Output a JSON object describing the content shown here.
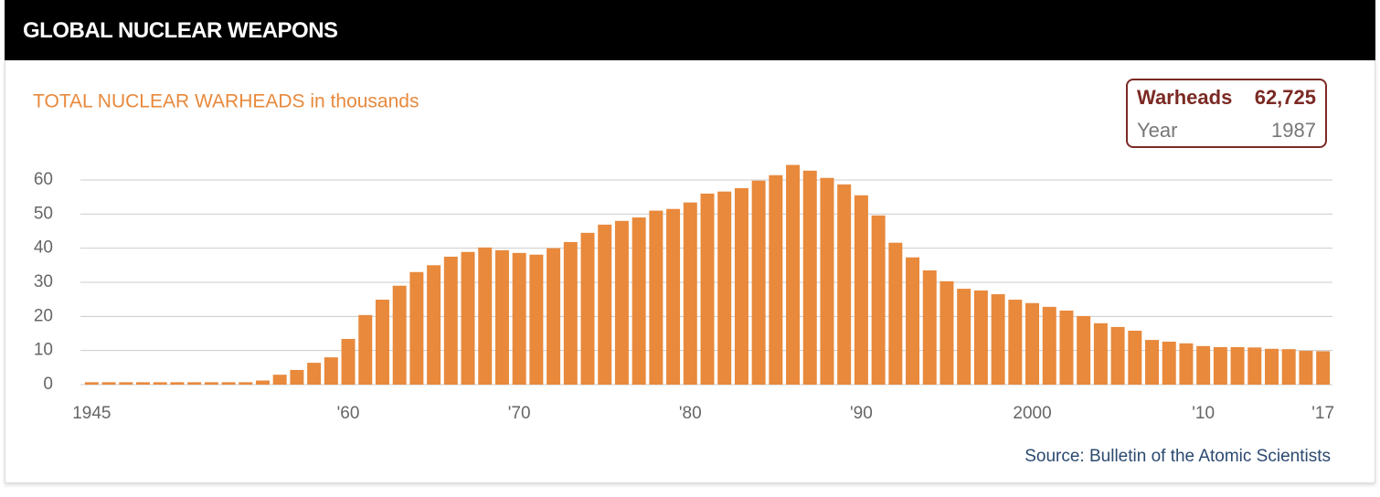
{
  "header": {
    "title": "GLOBAL NUCLEAR WEAPONS"
  },
  "chart_data": {
    "type": "bar",
    "subtitle": "TOTAL NUCLEAR WARHEADS in thousands",
    "source": "Source: Bulletin of the Atomic Scientists",
    "tooltip": {
      "label": "Warheads",
      "value": "62,725",
      "year_label": "Year",
      "year": "1987"
    },
    "color": "#e8893c",
    "grid": true,
    "x": [
      1945,
      1946,
      1947,
      1948,
      1949,
      1950,
      1951,
      1952,
      1953,
      1954,
      1955,
      1956,
      1957,
      1958,
      1959,
      1960,
      1961,
      1962,
      1963,
      1964,
      1965,
      1966,
      1967,
      1968,
      1969,
      1970,
      1971,
      1972,
      1973,
      1974,
      1975,
      1976,
      1977,
      1978,
      1979,
      1980,
      1981,
      1982,
      1983,
      1984,
      1985,
      1986,
      1987,
      1988,
      1989,
      1990,
      1991,
      1992,
      1993,
      1994,
      1995,
      1996,
      1997,
      1998,
      1999,
      2000,
      2001,
      2002,
      2003,
      2004,
      2005,
      2006,
      2007,
      2008,
      2009,
      2010,
      2011,
      2012,
      2013,
      2014,
      2015,
      2016,
      2017
    ],
    "values": [
      0.7,
      0.7,
      0.7,
      0.7,
      0.7,
      0.7,
      0.7,
      0.7,
      0.7,
      0.7,
      1.2,
      2.9,
      4.3,
      6.4,
      8.0,
      13.4,
      20.4,
      24.9,
      29.0,
      33.0,
      35.0,
      37.5,
      38.9,
      40.2,
      39.4,
      38.6,
      38.1,
      40.0,
      41.8,
      44.5,
      46.9,
      48.0,
      49.0,
      51.0,
      51.5,
      53.4,
      56.0,
      56.6,
      57.6,
      59.8,
      61.4,
      64.4,
      62.725,
      60.6,
      58.7,
      55.5,
      49.6,
      41.6,
      37.3,
      33.5,
      30.3,
      28.1,
      27.6,
      26.5,
      24.9,
      23.9,
      22.8,
      21.7,
      20.1,
      18.0,
      16.9,
      15.8,
      13.1,
      12.6,
      12.1,
      11.3,
      11.0,
      11.0,
      10.9,
      10.5,
      10.4,
      9.9,
      9.8
    ],
    "xlim": [
      1944.5,
      2017.5
    ],
    "xticks": [
      1945,
      {
        "value": 1960,
        "label": "'60"
      },
      {
        "value": 1970,
        "label": "'70"
      },
      {
        "value": 1980,
        "label": "'80"
      },
      {
        "value": 1990,
        "label": "'90"
      },
      2000,
      {
        "value": 2010,
        "label": "'10"
      },
      {
        "value": 2017,
        "label": "'17"
      }
    ],
    "ylim": [
      0,
      65
    ],
    "yticks": [
      0,
      10,
      20,
      30,
      40,
      50,
      60
    ]
  }
}
